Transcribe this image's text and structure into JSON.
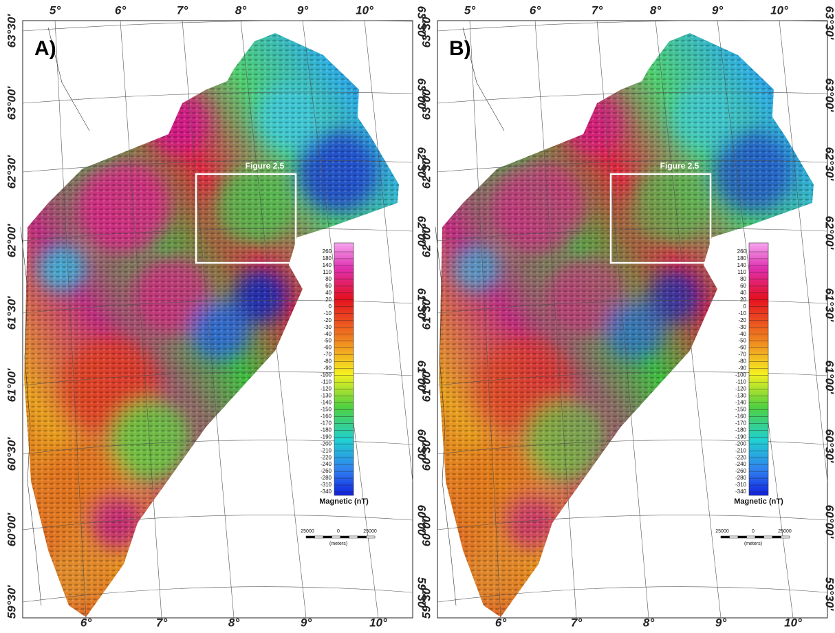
{
  "panels": [
    {
      "label": "A)",
      "top_longitudes": [
        "5°",
        "6°",
        "7°",
        "8°",
        "9°",
        "10°"
      ],
      "bottom_longitudes": [
        "6°",
        "7°",
        "8°",
        "9°",
        "10°"
      ],
      "left_latitudes": [
        "63°30'",
        "63°00'",
        "62°30'",
        "62°00'",
        "61°30'",
        "61°00'",
        "60°30'",
        "60°00'",
        "59°30'"
      ],
      "right_latitudes": [
        "63°30'",
        "63°00'",
        "62°30'",
        "62°00'",
        "61°30'",
        "61°00'",
        "60°30'",
        "60°00'",
        "59°30'"
      ],
      "inset_label": "Figure 2.5",
      "legend": {
        "title": "Magnetic (nT)",
        "ticks": [
          260,
          180,
          140,
          110,
          80,
          60,
          40,
          20,
          0,
          -10,
          -20,
          -30,
          -40,
          -50,
          -60,
          -70,
          -80,
          -90,
          -100,
          -110,
          -120,
          -130,
          -140,
          -150,
          -160,
          -170,
          -180,
          -190,
          -200,
          -210,
          -220,
          -240,
          -260,
          -280,
          -310,
          -340
        ]
      },
      "scale_bar": {
        "labels": [
          "25000",
          "0",
          "25000"
        ],
        "unit": "(meters)"
      }
    },
    {
      "label": "B)",
      "top_longitudes": [
        "5°",
        "6°",
        "7°",
        "8°",
        "9°",
        "10°"
      ],
      "bottom_longitudes": [
        "6°",
        "7°",
        "8°",
        "9°",
        "10°"
      ],
      "left_latitudes": [
        "63°30'",
        "63°00'",
        "62°30'",
        "62°00'",
        "61°30'",
        "61°00'",
        "60°30'",
        "60°00'",
        "59°30'"
      ],
      "right_latitudes": [
        "63°30'",
        "63°00'",
        "62°30'",
        "62°00'",
        "61°30'",
        "61°00'",
        "60°30'",
        "60°00'",
        "59°30'"
      ],
      "inset_label": "Figure 2.5",
      "legend": {
        "title": "Magnetic (nT)",
        "ticks": [
          260,
          180,
          140,
          110,
          80,
          60,
          40,
          20,
          0,
          -10,
          -20,
          -30,
          -40,
          -50,
          -60,
          -70,
          -80,
          -90,
          -100,
          -110,
          -120,
          -130,
          -140,
          -150,
          -160,
          -170,
          -180,
          -190,
          -200,
          -210,
          -220,
          -240,
          -260,
          -280,
          -310,
          -340
        ]
      },
      "scale_bar": {
        "labels": [
          "25000",
          "0",
          "25000"
        ],
        "unit": "(meters)"
      }
    }
  ]
}
